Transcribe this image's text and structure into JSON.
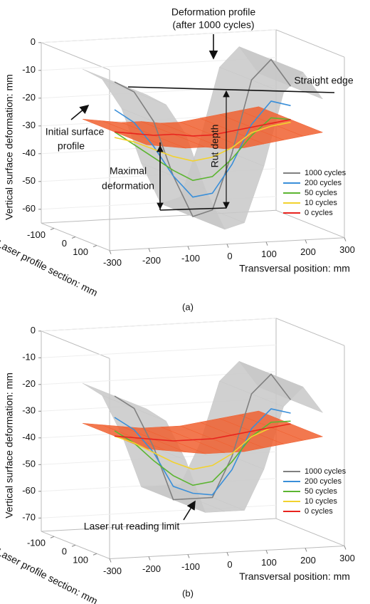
{
  "chart_data": [
    {
      "type": "surface3d",
      "caption": "(a)",
      "xlabel": "Transversal position: mm",
      "ylabel": "Laser profile section: mm",
      "zlabel": "Vertical surface deformation: mm",
      "xlim": [
        -300,
        300
      ],
      "xticks": [
        -300,
        -200,
        -100,
        0,
        100,
        200,
        300
      ],
      "ylim": [
        -160,
        160
      ],
      "yticks": [
        -100,
        0,
        100
      ],
      "zlim": [
        -65,
        0
      ],
      "zticks": [
        0,
        -10,
        -20,
        -30,
        -40,
        -50,
        -60
      ],
      "x": [
        -200,
        -150,
        -100,
        -50,
        0,
        50,
        100,
        150,
        200,
        250
      ],
      "series": [
        {
          "name": "1000 cycles",
          "color": "#808080",
          "surface": "#c8c8c8",
          "values": [
            -10,
            -14,
            -25,
            -45,
            -60,
            -58,
            -38,
            -12,
            -5,
            -15
          ]
        },
        {
          "name": "200 cycles",
          "color": "#3a8fd9",
          "values": [
            -20,
            -25,
            -34,
            -45,
            -53,
            -52,
            -42,
            -28,
            -20,
            -22
          ]
        },
        {
          "name": "50 cycles",
          "color": "#5cb531",
          "values": [
            -28,
            -33,
            -38,
            -43,
            -47,
            -46,
            -40,
            -32,
            -26,
            -27
          ]
        },
        {
          "name": "10 cycles",
          "color": "#f2d22e",
          "values": [
            -30,
            -32,
            -35,
            -38,
            -40,
            -39,
            -36,
            -31,
            -29,
            -28
          ]
        },
        {
          "name": "0 cycles",
          "color": "#e8231e",
          "surface": "#f06030",
          "values": [
            -28,
            -29,
            -30,
            -30,
            -31,
            -31,
            -30,
            -29,
            -28,
            -27
          ]
        }
      ],
      "annotations": [
        "Deformation profile",
        "(after 1000 cycles)",
        "Straight edge",
        "Initial surface",
        "profile",
        "Maximal",
        "deformation",
        "Rut depth"
      ]
    },
    {
      "type": "surface3d",
      "caption": "(b)",
      "xlabel": "Transversal position: mm",
      "ylabel": "Laser profile section: mm",
      "zlabel": "Vertical surface deformation: mm",
      "xlim": [
        -300,
        300
      ],
      "xticks": [
        -300,
        -200,
        -100,
        0,
        100,
        200,
        300
      ],
      "ylim": [
        -160,
        160
      ],
      "yticks": [
        -100,
        0,
        100
      ],
      "zlim": [
        -75,
        0
      ],
      "zticks": [
        0,
        -10,
        -20,
        -30,
        -40,
        -50,
        -60,
        -70
      ],
      "x": [
        -200,
        -150,
        -100,
        -50,
        0,
        50,
        100,
        150,
        200,
        250
      ],
      "series": [
        {
          "name": "1000 cycles",
          "color": "#808080",
          "surface": "#c8c8c8",
          "values": [
            -20,
            -25,
            -40,
            -60,
            -60,
            -60,
            -45,
            -22,
            -15,
            -25
          ]
        },
        {
          "name": "200 cycles",
          "color": "#3a8fd9",
          "values": [
            -28,
            -33,
            -42,
            -55,
            -58,
            -59,
            -50,
            -35,
            -28,
            -30
          ]
        },
        {
          "name": "50 cycles",
          "color": "#5cb531",
          "values": [
            -33,
            -38,
            -45,
            -51,
            -55,
            -54,
            -47,
            -38,
            -33,
            -33
          ]
        },
        {
          "name": "10 cycles",
          "color": "#f2d22e",
          "values": [
            -35,
            -38,
            -42,
            -46,
            -49,
            -48,
            -44,
            -38,
            -35,
            -34
          ]
        },
        {
          "name": "0 cycles",
          "color": "#e8231e",
          "surface": "#f06030",
          "values": [
            -35,
            -36,
            -37,
            -38,
            -38,
            -38,
            -37,
            -36,
            -35,
            -34
          ]
        }
      ],
      "annotations": [
        "Laser rut reading limit"
      ]
    }
  ]
}
